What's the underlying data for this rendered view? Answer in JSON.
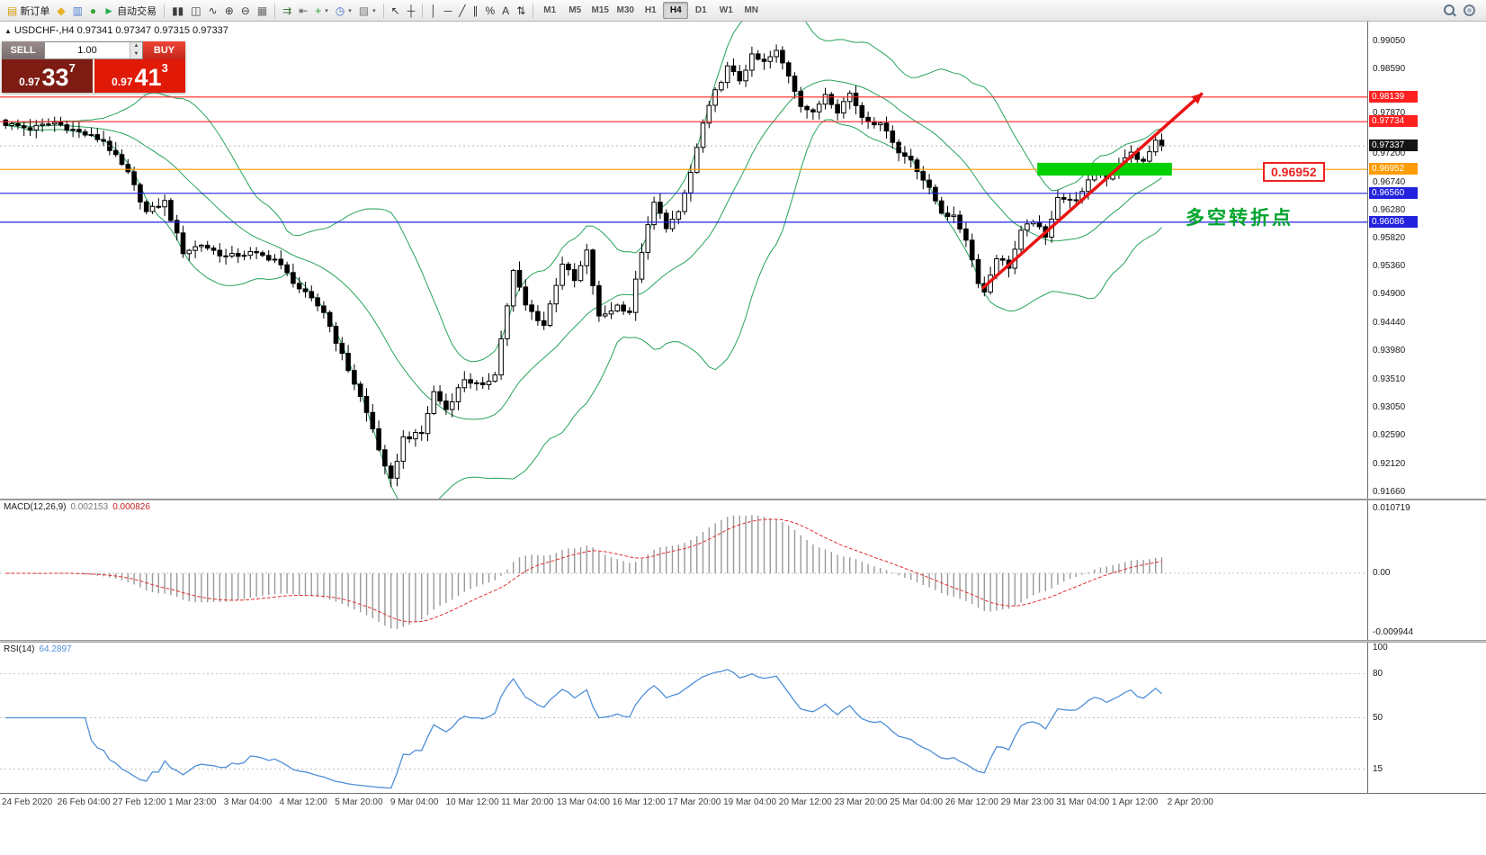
{
  "glyphs": {
    "up": "▲",
    "down": "▼",
    "dropdown": "▾",
    "collapse": "▲"
  },
  "toolbar": {
    "groups": [
      {
        "name": "system",
        "items": [
          {
            "name": "new-order-button",
            "glyph": "▤",
            "glyph_color": "#d39f12",
            "label": "新订单"
          },
          {
            "name": "market-watch-icon",
            "glyph": "◆",
            "glyph_color": "#e8b225"
          },
          {
            "name": "navigator-icon",
            "glyph": "▥",
            "glyph_color": "#4a7fd0"
          },
          {
            "name": "terminal-icon",
            "glyph": "●",
            "glyph_color": "#3aa43a"
          },
          {
            "name": "autotrade-button",
            "glyph": "►",
            "glyph_color": "#22b14c",
            "label": "自动交易"
          }
        ]
      },
      {
        "name": "chart-type",
        "items": [
          {
            "name": "bar-chart-icon",
            "glyph": "▮▮",
            "glyph_color": "#3c3c3c"
          },
          {
            "name": "candlestick-chart-icon",
            "glyph": "◫",
            "glyph_color": "#3c3c3c"
          },
          {
            "name": "line-chart-icon",
            "glyph": "∿",
            "glyph_color": "#3c3c3c"
          },
          {
            "name": "zoom-in-icon",
            "glyph": "⊕",
            "glyph_color": "#3c3c3c"
          },
          {
            "name": "zoom-out-icon",
            "glyph": "⊖",
            "glyph_color": "#3c3c3c"
          },
          {
            "name": "tile-windows-icon",
            "glyph": "▦",
            "glyph_color": "#6a6a6a"
          }
        ]
      },
      {
        "name": "chart-tools",
        "items": [
          {
            "name": "auto-scroll-icon",
            "glyph": "⇉",
            "glyph_color": "#3c7a3c"
          },
          {
            "name": "chart-shift-icon",
            "glyph": "⇤",
            "glyph_color": "#555555"
          },
          {
            "name": "indicators-icon",
            "glyph": "+",
            "glyph_color": "#28a428",
            "dropdown": true
          },
          {
            "name": "periods-icon",
            "glyph": "◷",
            "glyph_color": "#3a6fd0",
            "dropdown": true
          },
          {
            "name": "templates-icon",
            "glyph": "▨",
            "glyph_color": "#777777",
            "dropdown": true
          }
        ]
      },
      {
        "name": "cursor",
        "items": [
          {
            "name": "cursor-icon",
            "glyph": "↖",
            "glyph_color": "#333333"
          },
          {
            "name": "crosshair-icon",
            "glyph": "┼",
            "glyph_color": "#333333"
          }
        ]
      },
      {
        "name": "objects",
        "items": [
          {
            "name": "vertical-line-icon",
            "glyph": "│",
            "glyph_color": "#333333"
          },
          {
            "name": "horizontal-line-icon",
            "glyph": "─",
            "glyph_color": "#333333"
          },
          {
            "name": "trendline-icon",
            "glyph": "╱",
            "glyph_color": "#333333"
          },
          {
            "name": "equidistant-channel-icon",
            "glyph": "∥",
            "glyph_color": "#333333"
          },
          {
            "name": "fibonacci-icon",
            "glyph": "%",
            "glyph_color": "#333333"
          },
          {
            "name": "text-icon",
            "glyph": "A",
            "glyph_color": "#333333"
          },
          {
            "name": "arrows-icon",
            "glyph": "⇅",
            "glyph_color": "#333333"
          }
        ]
      }
    ],
    "timeframes": [
      {
        "name": "timeframe-m1",
        "label": "M1",
        "active": false
      },
      {
        "name": "timeframe-m5",
        "label": "M5",
        "active": false
      },
      {
        "name": "timeframe-m15",
        "label": "M15",
        "active": false
      },
      {
        "name": "timeframe-m30",
        "label": "M30",
        "active": false
      },
      {
        "name": "timeframe-h1",
        "label": "H1",
        "active": false
      },
      {
        "name": "timeframe-h4",
        "label": "H4",
        "active": true
      },
      {
        "name": "timeframe-d1",
        "label": "D1",
        "active": false
      },
      {
        "name": "timeframe-w1",
        "label": "W1",
        "active": false
      },
      {
        "name": "timeframe-mn",
        "label": "MN",
        "active": false
      }
    ]
  },
  "symbol_info": {
    "text": "USDCHF-,H4  0.97341 0.97347 0.97315 0.97337"
  },
  "trade_panel": {
    "sell_label": "SELL",
    "buy_label": "BUY",
    "volume": "1.00",
    "sell_price_small": "0.97",
    "sell_price_big": "33",
    "sell_price_sup": "7",
    "buy_price_small": "0.97",
    "buy_price_big": "41",
    "buy_price_sup": "3"
  },
  "chart": {
    "price_ticks": [
      "0.99050",
      "0.98590",
      "0.97870",
      "0.97200",
      "0.96740",
      "0.96280",
      "0.95820",
      "0.95360",
      "0.94900",
      "0.94440",
      "0.93980",
      "0.93510",
      "0.93050",
      "0.92590",
      "0.92120",
      "0.91660"
    ],
    "lines": [
      {
        "value": 0.98139,
        "label": "0.98139",
        "color": "#ff2020"
      },
      {
        "value": 0.97734,
        "label": "0.97734",
        "color": "#ff2020"
      },
      {
        "value": 0.96952,
        "label": "0.96952",
        "color": "#ff9c00"
      },
      {
        "value": 0.9656,
        "label": "0.96560",
        "color": "#2222dd"
      },
      {
        "value": 0.96086,
        "label": "0.96086",
        "color": "#2222dd"
      }
    ],
    "current_price": {
      "value": 0.97337,
      "label": "0.97337",
      "badge_color": "#141414"
    },
    "zone": {
      "start_index": 169,
      "end_index": 191,
      "price_top": 0.9706,
      "price_bottom": 0.9685,
      "color": "#00cf00"
    },
    "arrow": {
      "start_index": 160,
      "start_price": 0.95,
      "end_index": 196,
      "end_price": 0.982,
      "color": "#e81414"
    },
    "annotation": {
      "text": "多空转折点",
      "color": "#00a42c"
    },
    "callout": {
      "text": "0.96952"
    },
    "colors": {
      "bull": "#ffffff",
      "bear": "#000000",
      "outline": "#000000",
      "bollinger": "#27a35a"
    }
  },
  "chart_data": {
    "type": "candlestick",
    "symbol": "USDCHF-",
    "timeframe": "H4",
    "price_range": [
      0.9166,
      0.9905
    ],
    "candle_count": 190,
    "anchors": [
      [
        0,
        0.977
      ],
      [
        4,
        0.9762
      ],
      [
        8,
        0.9772
      ],
      [
        12,
        0.9756
      ],
      [
        16,
        0.9742
      ],
      [
        20,
        0.9688
      ],
      [
        23,
        0.9625
      ],
      [
        26,
        0.9642
      ],
      [
        29,
        0.956
      ],
      [
        32,
        0.9572
      ],
      [
        36,
        0.9552
      ],
      [
        40,
        0.9558
      ],
      [
        44,
        0.9548
      ],
      [
        48,
        0.95
      ],
      [
        52,
        0.9462
      ],
      [
        55,
        0.939
      ],
      [
        58,
        0.9322
      ],
      [
        60,
        0.927
      ],
      [
        62,
        0.9205
      ],
      [
        63,
        0.9185
      ],
      [
        65,
        0.9255
      ],
      [
        68,
        0.9262
      ],
      [
        70,
        0.933
      ],
      [
        72,
        0.9302
      ],
      [
        75,
        0.9352
      ],
      [
        78,
        0.9338
      ],
      [
        80,
        0.9362
      ],
      [
        83,
        0.9528
      ],
      [
        85,
        0.9472
      ],
      [
        88,
        0.944
      ],
      [
        91,
        0.9542
      ],
      [
        93,
        0.9512
      ],
      [
        95,
        0.956
      ],
      [
        97,
        0.9452
      ],
      [
        100,
        0.9472
      ],
      [
        102,
        0.9462
      ],
      [
        104,
        0.9562
      ],
      [
        106,
        0.964
      ],
      [
        108,
        0.9602
      ],
      [
        110,
        0.9622
      ],
      [
        112,
        0.969
      ],
      [
        114,
        0.977
      ],
      [
        116,
        0.9822
      ],
      [
        118,
        0.9862
      ],
      [
        120,
        0.9842
      ],
      [
        122,
        0.988
      ],
      [
        124,
        0.987
      ],
      [
        126,
        0.9888
      ],
      [
        128,
        0.985
      ],
      [
        130,
        0.9802
      ],
      [
        132,
        0.9786
      ],
      [
        134,
        0.982
      ],
      [
        136,
        0.9792
      ],
      [
        138,
        0.982
      ],
      [
        140,
        0.9782
      ],
      [
        142,
        0.9772
      ],
      [
        144,
        0.9762
      ],
      [
        146,
        0.9722
      ],
      [
        148,
        0.9712
      ],
      [
        151,
        0.9662
      ],
      [
        153,
        0.9626
      ],
      [
        155,
        0.9616
      ],
      [
        157,
        0.9582
      ],
      [
        159,
        0.9512
      ],
      [
        160,
        0.9494
      ],
      [
        162,
        0.9552
      ],
      [
        164,
        0.9536
      ],
      [
        166,
        0.9592
      ],
      [
        168,
        0.9612
      ],
      [
        170,
        0.9582
      ],
      [
        172,
        0.9652
      ],
      [
        174,
        0.9642
      ],
      [
        176,
        0.9656
      ],
      [
        178,
        0.9692
      ],
      [
        180,
        0.9682
      ],
      [
        182,
        0.9702
      ],
      [
        184,
        0.9722
      ],
      [
        186,
        0.9706
      ],
      [
        188,
        0.9742
      ],
      [
        189,
        0.97337
      ]
    ],
    "bollinger": {
      "period": 20,
      "deviation": 2
    },
    "macd_params": "12,26,9",
    "rsi_params": "14"
  },
  "macd_panel": {
    "name": "MACD(12,26,9)",
    "value_main": "0.002153",
    "value_signal": "0.000826",
    "axis": [
      "0.010719",
      "0.00",
      "-0.009944"
    ],
    "histogram_color": "#9a9a9a",
    "signal_color": "#e03030"
  },
  "rsi_panel": {
    "name": "RSI(14)",
    "value": "64.2897",
    "axis": [
      "100",
      "80",
      "50",
      "15"
    ],
    "levels": [
      80,
      50,
      15
    ],
    "line_color": "#4f8fd8"
  },
  "time_axis": {
    "labels": [
      "24 Feb 2020",
      "26 Feb 04:00",
      "27 Feb 12:00",
      "1 Mar 23:00",
      "3 Mar 04:00",
      "4 Mar 12:00",
      "5 Mar 20:00",
      "9 Mar 04:00",
      "10 Mar 12:00",
      "11 Mar 20:00",
      "13 Mar 04:00",
      "16 Mar 12:00",
      "17 Mar 20:00",
      "19 Mar 04:00",
      "20 Mar 12:00",
      "23 Mar 20:00",
      "25 Mar 04:00",
      "26 Mar 12:00",
      "29 Mar 23:00",
      "31 Mar 04:00",
      "1 Apr 12:00",
      "2 Apr 20:00"
    ]
  }
}
